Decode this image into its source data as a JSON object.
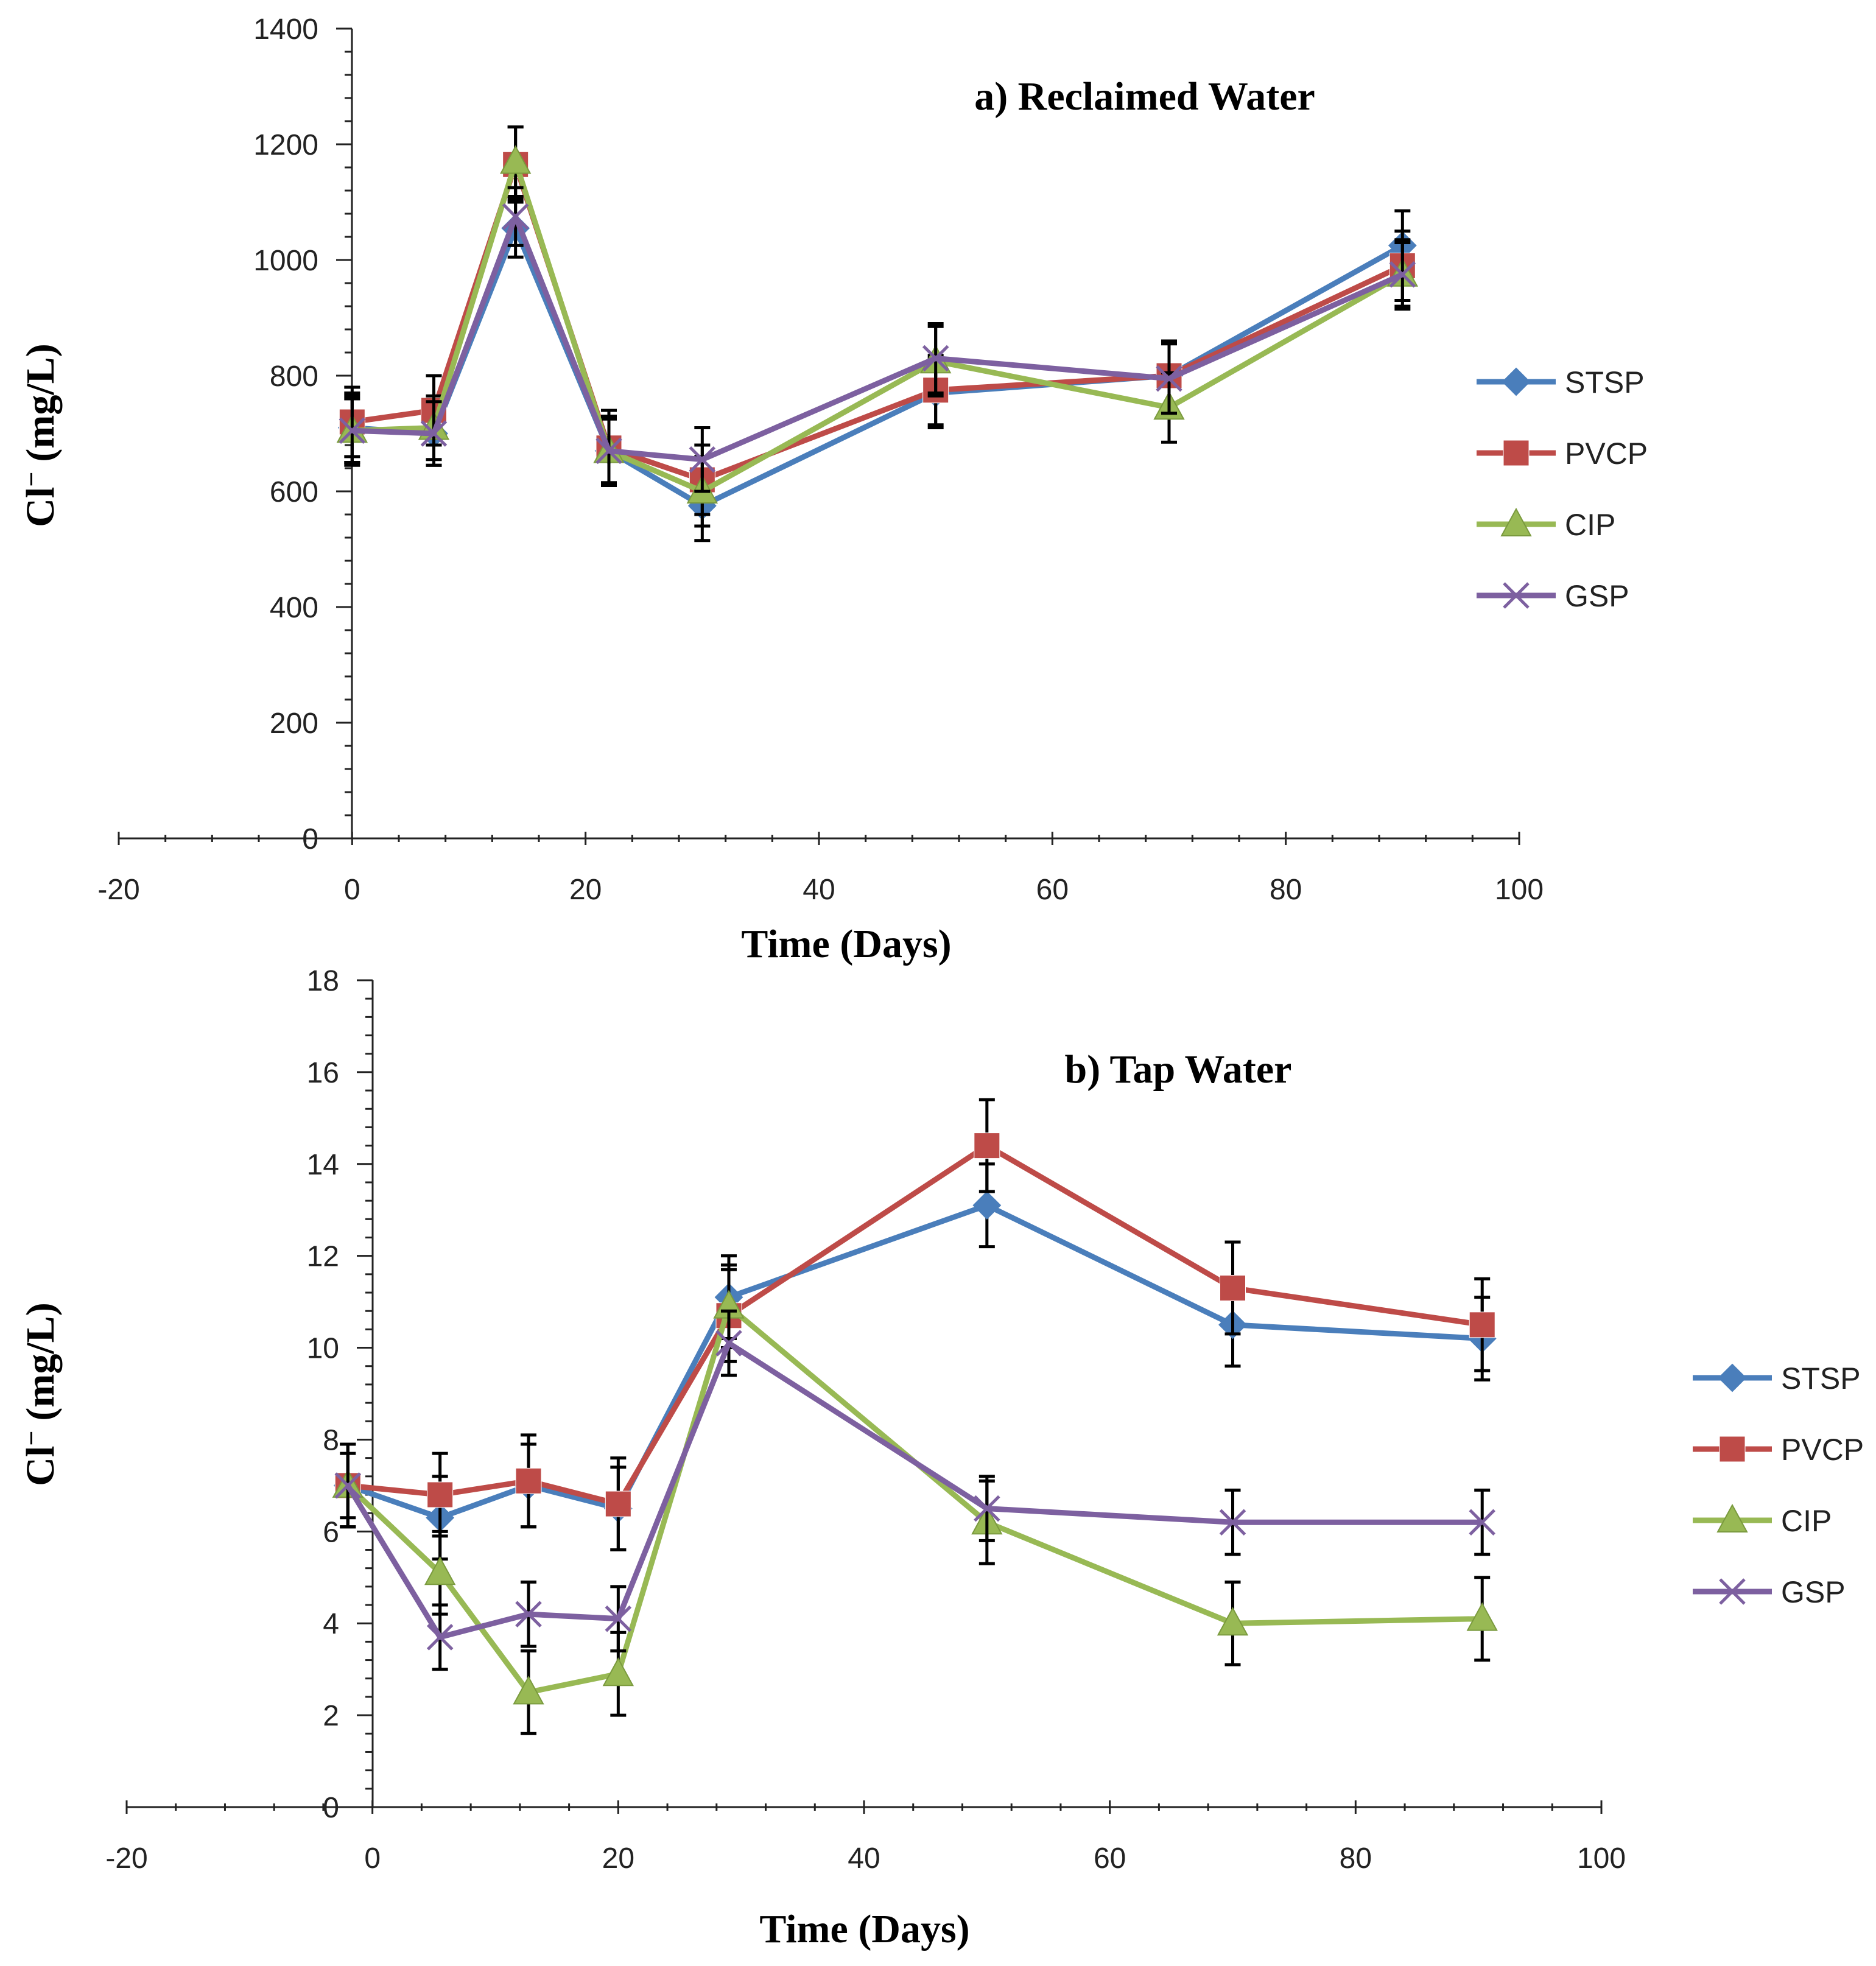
{
  "colors": {
    "STSP": "#4a7ebb",
    "PVCP": "#be4b48",
    "CIP": "#98b954",
    "GSP": "#7d60a0"
  },
  "chart_data": [
    {
      "type": "line",
      "title": "a) Reclaimed Water",
      "xlabel": "Time (Days)",
      "ylabel_main": "Cl",
      "ylabel_sup": "−",
      "ylabel_unit": "(mg/L)",
      "xlim": [
        -20,
        100
      ],
      "ylim": [
        0,
        1400
      ],
      "xticks": [
        -20,
        0,
        20,
        40,
        60,
        80,
        100
      ],
      "yticks": [
        0,
        200,
        400,
        600,
        800,
        1000,
        1200,
        1400
      ],
      "x": [
        0,
        7,
        14,
        22,
        30,
        50,
        70,
        90
      ],
      "legend_position": "right",
      "series": [
        {
          "name": "STSP",
          "marker": "diamond",
          "values": [
            710,
            700,
            1055,
            670,
            575,
            770,
            800,
            1025
          ],
          "errors": [
            60,
            55,
            50,
            60,
            60,
            60,
            60,
            60
          ]
        },
        {
          "name": "PVCP",
          "marker": "square",
          "values": [
            720,
            740,
            1165,
            675,
            620,
            775,
            800,
            990
          ],
          "errors": [
            60,
            60,
            65,
            65,
            60,
            60,
            60,
            60
          ]
        },
        {
          "name": "CIP",
          "marker": "triangle",
          "values": [
            705,
            710,
            1170,
            670,
            600,
            825,
            745,
            975
          ],
          "errors": [
            60,
            55,
            60,
            55,
            60,
            60,
            60,
            55
          ]
        },
        {
          "name": "GSP",
          "marker": "x",
          "values": [
            705,
            700,
            1075,
            670,
            655,
            830,
            795,
            975
          ],
          "errors": [
            55,
            55,
            50,
            60,
            55,
            60,
            60,
            60
          ]
        }
      ]
    },
    {
      "type": "line",
      "title": "b) Tap Water",
      "xlabel": "Time (Days)",
      "ylabel_main": "Cl",
      "ylabel_sup": "−",
      "ylabel_unit": "(mg/L)",
      "xlim": [
        -20,
        100
      ],
      "ylim": [
        0,
        18
      ],
      "xticks": [
        -20,
        0,
        20,
        40,
        60,
        80,
        100
      ],
      "yticks": [
        0,
        2,
        4,
        6,
        8,
        10,
        12,
        14,
        16,
        18
      ],
      "x": [
        -2,
        5.5,
        12.7,
        20,
        29,
        50,
        70,
        90.3
      ],
      "legend_position": "right",
      "series": [
        {
          "name": "STSP",
          "marker": "diamond",
          "values": [
            7.0,
            6.3,
            7.0,
            6.5,
            11.1,
            13.1,
            10.5,
            10.2
          ],
          "errors": [
            0.9,
            0.9,
            0.9,
            0.9,
            0.9,
            0.9,
            0.9,
            0.9
          ]
        },
        {
          "name": "PVCP",
          "marker": "square",
          "values": [
            7.0,
            6.8,
            7.1,
            6.6,
            10.7,
            14.4,
            11.3,
            10.5
          ],
          "errors": [
            0.9,
            0.9,
            1.0,
            1.0,
            1.0,
            1.0,
            1.0,
            1.0
          ]
        },
        {
          "name": "CIP",
          "marker": "triangle",
          "values": [
            7.0,
            5.1,
            2.5,
            2.9,
            10.9,
            6.2,
            4.0,
            4.1
          ],
          "errors": [
            0.9,
            0.9,
            0.9,
            0.9,
            0.9,
            0.9,
            0.9,
            0.9
          ]
        },
        {
          "name": "GSP",
          "marker": "x",
          "values": [
            7.0,
            3.7,
            4.2,
            4.1,
            10.1,
            6.5,
            6.2,
            6.2
          ],
          "errors": [
            0.7,
            0.7,
            0.7,
            0.7,
            0.7,
            0.7,
            0.7,
            0.7
          ]
        }
      ]
    }
  ]
}
